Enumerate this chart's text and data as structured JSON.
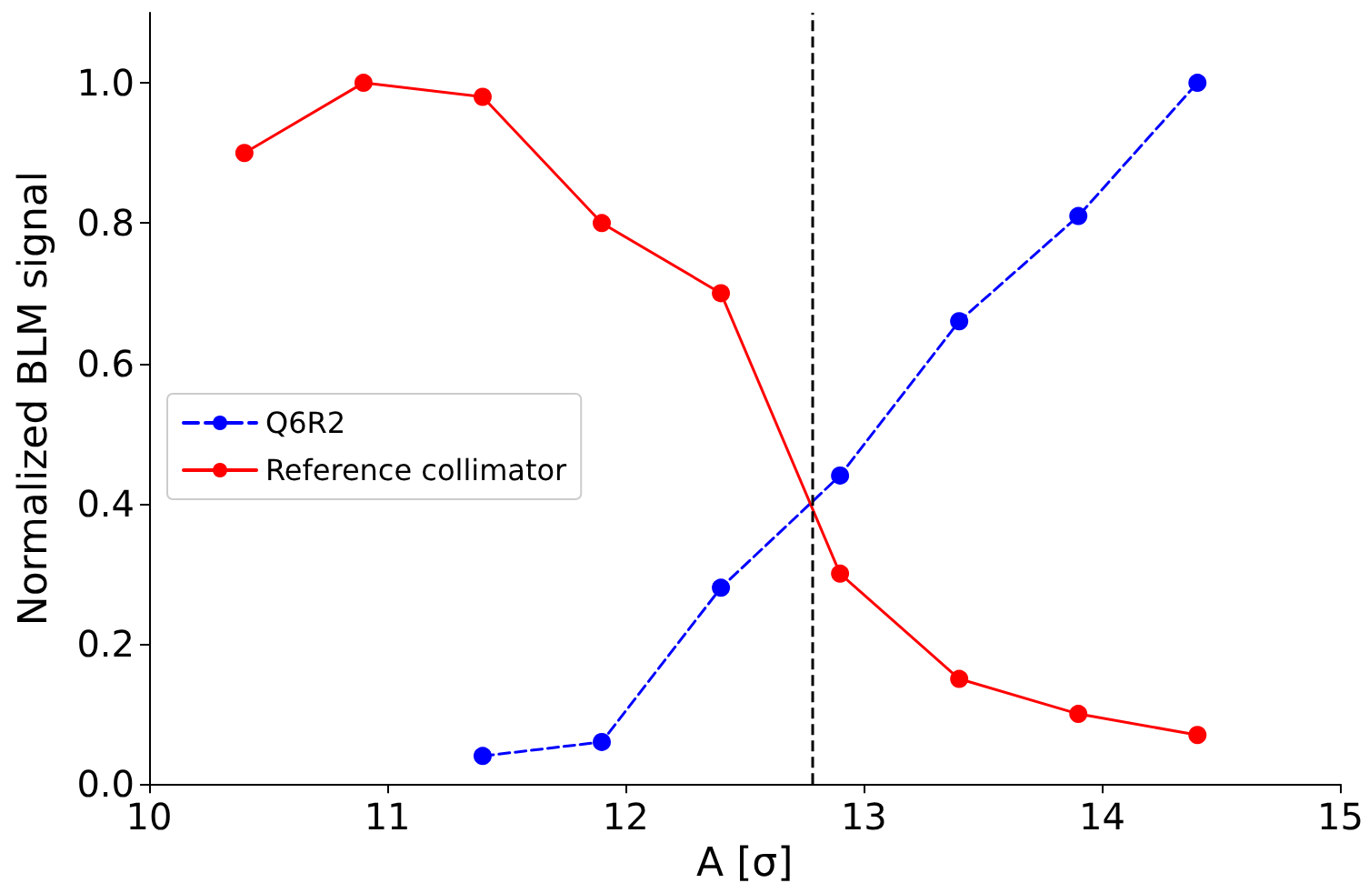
{
  "chart_data": {
    "type": "line",
    "xlabel": "A [σ]",
    "ylabel": "Normalized BLM signal",
    "series": [
      {
        "name": "Q6R2",
        "color": "#0000ff",
        "line_style": "dashed",
        "x": [
          11.4,
          11.9,
          12.4,
          12.9,
          13.4,
          13.9,
          14.4
        ],
        "values": [
          0.04,
          0.06,
          0.28,
          0.44,
          0.66,
          0.81,
          1.0
        ]
      },
      {
        "name": "Reference collimator",
        "color": "#ff0000",
        "line_style": "solid",
        "x": [
          10.4,
          10.9,
          11.4,
          11.9,
          12.4,
          12.9,
          13.4,
          13.9,
          14.4
        ],
        "values": [
          0.9,
          1.0,
          0.98,
          0.8,
          0.7,
          0.3,
          0.15,
          0.1,
          0.07
        ]
      }
    ],
    "xlim": [
      10,
      15
    ],
    "xticks": [
      10,
      11,
      12,
      13,
      14,
      15
    ],
    "ylim": [
      0,
      1.1
    ],
    "yticks": [
      {
        "value": 0,
        "label": "0.0"
      },
      {
        "value": 0.2,
        "label": "0.2"
      },
      {
        "value": 0.4,
        "label": "0.4"
      },
      {
        "value": 0.6,
        "label": "0.6"
      },
      {
        "value": 0.8,
        "label": "0.8"
      },
      {
        "value": 1.0,
        "label": "1.0"
      }
    ],
    "ref_lines": [
      {
        "axis": "x",
        "value": 12.78,
        "color": "#000000",
        "line_style": "dashed"
      }
    ],
    "marker": "circle",
    "grid": false,
    "legend": "center left"
  }
}
